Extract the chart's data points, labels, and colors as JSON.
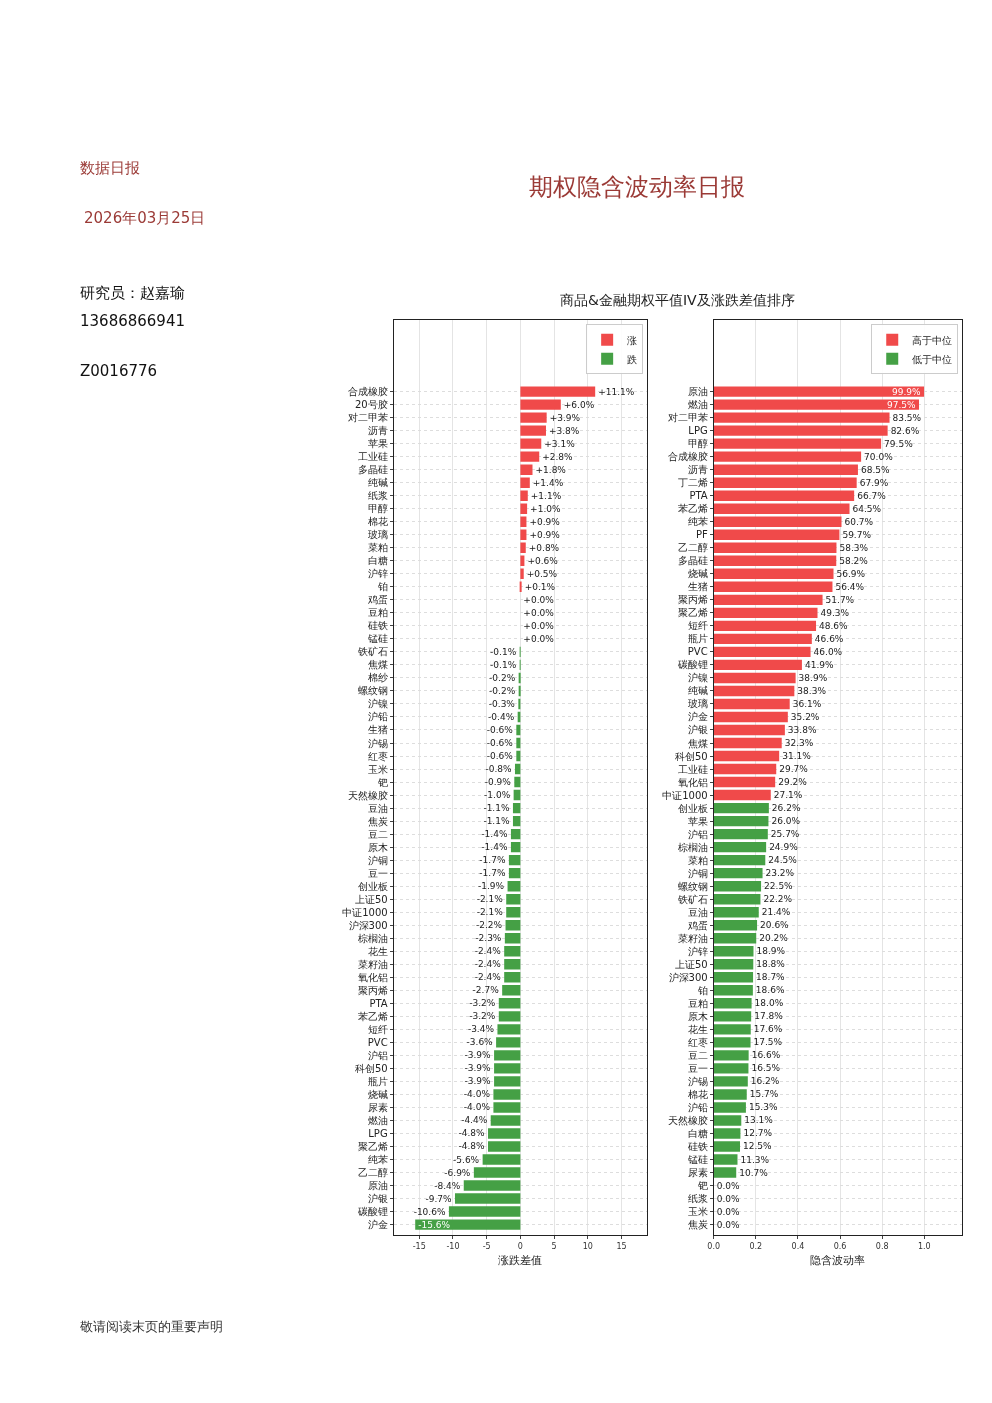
{
  "chart_data": [
    {
      "type": "bar",
      "orientation": "horizontal",
      "title": "商品&金融期权平值IV及涨跌差值排序",
      "xlabel": "涨跌差值",
      "grid": true,
      "legend": "top right",
      "annotations": [
        "期权隐含波动率日报",
        "数据日报",
        "2026年03月25日",
        "研究员：赵嘉瑜",
        "13686866941",
        "Z0016776",
        "敬请阅读末页的重要声明"
      ],
      "xlim": [
        -18.8,
        18.8
      ],
      "xticks": [
        -15,
        -10,
        -5,
        0,
        5,
        10,
        15
      ],
      "categories": [
        "合成橡胶",
        "20号胶",
        "对二甲苯",
        "沥青",
        "苹果",
        "工业硅",
        "多晶硅",
        "纯碱",
        "纸浆",
        "甲醇",
        "棉花",
        "玻璃",
        "菜粕",
        "白糖",
        "沪锌",
        "铂",
        "鸡蛋",
        "豆粕",
        "硅铁",
        "锰硅",
        "铁矿石",
        "焦煤",
        "棉纱",
        "螺纹钢",
        "沪镍",
        "沪铅",
        "生猪",
        "沪锡",
        "红枣",
        "玉米",
        "钯",
        "天然橡胶",
        "豆油",
        "焦炭",
        "豆二",
        "原木",
        "沪铜",
        "豆一",
        "创业板",
        "上证50",
        "中证1000",
        "沪深300",
        "棕榈油",
        "花生",
        "菜籽油",
        "氧化铝",
        "聚丙烯",
        "PTA",
        "苯乙烯",
        "短纤",
        "PVC",
        "沪铝",
        "科创50",
        "瓶片",
        "烧碱",
        "尿素",
        "燃油",
        "LPG",
        "聚乙烯",
        "纯苯",
        "乙二醇",
        "原油",
        "沪银",
        "碳酸锂",
        "沪金"
      ],
      "series": [
        {
          "name": "涨",
          "color": "#f04a4a",
          "values": [
            11.1,
            6.0,
            3.9,
            3.8,
            3.1,
            2.8,
            1.8,
            1.4,
            1.1,
            1.0,
            0.9,
            0.9,
            0.8,
            0.6,
            0.5,
            0.1,
            0.0,
            0.0,
            0.0,
            0.0,
            null,
            null,
            null,
            null,
            null,
            null,
            null,
            null,
            null,
            null,
            null,
            null,
            null,
            null,
            null,
            null,
            null,
            null,
            null,
            null,
            null,
            null,
            null,
            null,
            null,
            null,
            null,
            null,
            null,
            null,
            null,
            null,
            null,
            null,
            null,
            null,
            null,
            null,
            null,
            null,
            null,
            null,
            null,
            null,
            null
          ],
          "value_labels": [
            "+11.1%",
            "+6.0%",
            "+3.9%",
            "+3.8%",
            "+3.1%",
            "+2.8%",
            "+1.8%",
            "+1.4%",
            "+1.1%",
            "+1.0%",
            "+0.9%",
            "+0.9%",
            "+0.8%",
            "+0.6%",
            "+0.5%",
            "+0.1%",
            "+0.0%",
            "+0.0%",
            "+0.0%",
            "+0.0%",
            null,
            null,
            null,
            null,
            null,
            null,
            null,
            null,
            null,
            null,
            null,
            null,
            null,
            null,
            null,
            null,
            null,
            null,
            null,
            null,
            null,
            null,
            null,
            null,
            null,
            null,
            null,
            null,
            null,
            null,
            null,
            null,
            null,
            null,
            null,
            null,
            null,
            null,
            null,
            null,
            null,
            null,
            null,
            null,
            null
          ]
        },
        {
          "name": "跌",
          "color": "#45a045",
          "values": [
            null,
            null,
            null,
            null,
            null,
            null,
            null,
            null,
            null,
            null,
            null,
            null,
            null,
            null,
            null,
            null,
            null,
            null,
            null,
            null,
            -0.1,
            -0.1,
            -0.2,
            -0.2,
            -0.3,
            -0.4,
            -0.6,
            -0.6,
            -0.6,
            -0.8,
            -0.9,
            -1.0,
            -1.1,
            -1.1,
            -1.4,
            -1.4,
            -1.7,
            -1.7,
            -1.9,
            -2.1,
            -2.1,
            -2.2,
            -2.3,
            -2.4,
            -2.4,
            -2.4,
            -2.7,
            -3.2,
            -3.2,
            -3.4,
            -3.6,
            -3.9,
            -3.9,
            -3.9,
            -4.0,
            -4.0,
            -4.4,
            -4.8,
            -4.8,
            -5.6,
            -6.9,
            -8.4,
            -9.7,
            -10.6,
            -15.6
          ],
          "value_labels": [
            null,
            null,
            null,
            null,
            null,
            null,
            null,
            null,
            null,
            null,
            null,
            null,
            null,
            null,
            null,
            null,
            null,
            null,
            null,
            null,
            "-0.1%",
            "-0.1%",
            "-0.2%",
            "-0.2%",
            "-0.3%",
            "-0.4%",
            "-0.6%",
            "-0.6%",
            "-0.6%",
            "-0.8%",
            "-0.9%",
            "-1.0%",
            "-1.1%",
            "-1.1%",
            "-1.4%",
            "-1.4%",
            "-1.7%",
            "-1.7%",
            "-1.9%",
            "-2.1%",
            "-2.1%",
            "-2.2%",
            "-2.3%",
            "-2.4%",
            "-2.4%",
            "-2.4%",
            "-2.7%",
            "-3.2%",
            "-3.2%",
            "-3.4%",
            "-3.6%",
            "-3.9%",
            "-3.9%",
            "-3.9%",
            "-4.0%",
            "-4.0%",
            "-4.4%",
            "-4.8%",
            "-4.8%",
            "-5.6%",
            "-6.9%",
            "-8.4%",
            "-9.7%",
            "-10.6%",
            "-15.6%"
          ]
        }
      ]
    },
    {
      "type": "bar",
      "orientation": "horizontal",
      "xlabel": "隐含波动率",
      "grid": true,
      "legend": "top right",
      "xlim": [
        0,
        1.18
      ],
      "xticks": [
        {
          "value": 0,
          "label": "0.0"
        },
        {
          "value": 0.2,
          "label": "0.2"
        },
        {
          "value": 0.4,
          "label": "0.4"
        },
        {
          "value": 0.6,
          "label": "0.6"
        },
        {
          "value": 0.8,
          "label": "0.8"
        },
        {
          "value": 1,
          "label": "1.0"
        }
      ],
      "categories": [
        "原油",
        "燃油",
        "对二甲苯",
        "LPG",
        "甲醇",
        "合成橡胶",
        "沥青",
        "丁二烯",
        "PTA",
        "苯乙烯",
        "纯苯",
        "PF",
        "乙二醇",
        "多晶硅",
        "烧碱",
        "生猪",
        "聚丙烯",
        "聚乙烯",
        "短纤",
        "瓶片",
        "PVC",
        "碳酸锂",
        "沪镍",
        "纯碱",
        "玻璃",
        "沪金",
        "沪银",
        "焦煤",
        "科创50",
        "工业硅",
        "氧化铝",
        "中证1000",
        "创业板",
        "苹果",
        "沪铝",
        "棕榈油",
        "菜粕",
        "沪铜",
        "螺纹钢",
        "铁矿石",
        "豆油",
        "鸡蛋",
        "菜籽油",
        "沪锌",
        "上证50",
        "沪深300",
        "铂",
        "豆粕",
        "原木",
        "花生",
        "红枣",
        "豆二",
        "豆一",
        "沪锡",
        "棉花",
        "沪铅",
        "天然橡胶",
        "白糖",
        "硅铁",
        "锰硅",
        "尿素",
        "钯",
        "纸浆",
        "玉米",
        "焦炭"
      ],
      "series": [
        {
          "name": "高于中位",
          "color": "#f04a4a",
          "values": [
            0.999,
            0.975,
            0.835,
            0.826,
            0.795,
            0.7,
            0.685,
            0.679,
            0.667,
            0.645,
            0.607,
            0.597,
            0.583,
            0.582,
            0.569,
            0.564,
            0.517,
            0.493,
            0.486,
            0.466,
            0.46,
            0.419,
            0.389,
            0.383,
            0.361,
            0.352,
            0.338,
            0.323,
            0.311,
            0.297,
            0.292,
            0.271,
            null,
            null,
            null,
            null,
            null,
            null,
            null,
            null,
            null,
            null,
            null,
            null,
            null,
            null,
            null,
            null,
            null,
            null,
            null,
            null,
            null,
            null,
            null,
            null,
            null,
            null,
            null,
            null,
            null,
            null,
            null,
            null,
            null
          ],
          "value_labels": [
            "99.9%",
            "97.5%",
            "83.5%",
            "82.6%",
            "79.5%",
            "70.0%",
            "68.5%",
            "67.9%",
            "66.7%",
            "64.5%",
            "60.7%",
            "59.7%",
            "58.3%",
            "58.2%",
            "56.9%",
            "56.4%",
            "51.7%",
            "49.3%",
            "48.6%",
            "46.6%",
            "46.0%",
            "41.9%",
            "38.9%",
            "38.3%",
            "36.1%",
            "35.2%",
            "33.8%",
            "32.3%",
            "31.1%",
            "29.7%",
            "29.2%",
            "27.1%",
            null,
            null,
            null,
            null,
            null,
            null,
            null,
            null,
            null,
            null,
            null,
            null,
            null,
            null,
            null,
            null,
            null,
            null,
            null,
            null,
            null,
            null,
            null,
            null,
            null,
            null,
            null,
            null,
            null,
            null,
            null,
            null,
            null
          ]
        },
        {
          "name": "低于中位",
          "color": "#45a045",
          "values": [
            null,
            null,
            null,
            null,
            null,
            null,
            null,
            null,
            null,
            null,
            null,
            null,
            null,
            null,
            null,
            null,
            null,
            null,
            null,
            null,
            null,
            null,
            null,
            null,
            null,
            null,
            null,
            null,
            null,
            null,
            null,
            null,
            0.262,
            0.26,
            0.257,
            0.249,
            0.245,
            0.232,
            0.225,
            0.222,
            0.214,
            0.206,
            0.202,
            0.189,
            0.188,
            0.187,
            0.186,
            0.18,
            0.178,
            0.176,
            0.175,
            0.166,
            0.165,
            0.162,
            0.157,
            0.153,
            0.131,
            0.127,
            0.125,
            0.113,
            0.107,
            0.0,
            0.0,
            0.0,
            0.0
          ],
          "value_labels": [
            null,
            null,
            null,
            null,
            null,
            null,
            null,
            null,
            null,
            null,
            null,
            null,
            null,
            null,
            null,
            null,
            null,
            null,
            null,
            null,
            null,
            null,
            null,
            null,
            null,
            null,
            null,
            null,
            null,
            null,
            null,
            null,
            "26.2%",
            "26.0%",
            "25.7%",
            "24.9%",
            "24.5%",
            "23.2%",
            "22.5%",
            "22.2%",
            "21.4%",
            "20.6%",
            "20.2%",
            "18.9%",
            "18.8%",
            "18.7%",
            "18.6%",
            "18.0%",
            "17.8%",
            "17.6%",
            "17.5%",
            "16.6%",
            "16.5%",
            "16.2%",
            "15.7%",
            "15.3%",
            "13.1%",
            "12.7%",
            "12.5%",
            "11.3%",
            "10.7%",
            "0.0%",
            "0.0%",
            "0.0%",
            "0.0%"
          ]
        }
      ]
    }
  ]
}
